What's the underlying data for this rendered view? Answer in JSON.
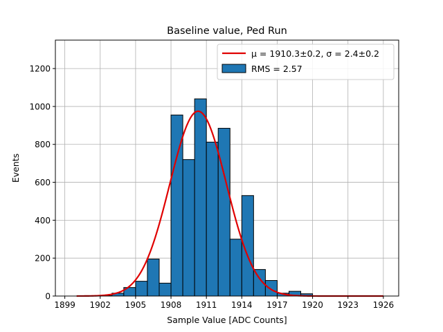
{
  "chart_data": {
    "type": "bar",
    "title": "Baseline value, Ped Run",
    "xlabel": "Sample Value [ADC Counts]",
    "ylabel": "Events",
    "xlim": [
      1898.2,
      1927.3
    ],
    "ylim": [
      0,
      1350
    ],
    "xticks": [
      1899,
      1902,
      1905,
      1908,
      1911,
      1914,
      1917,
      1920,
      1923,
      1926
    ],
    "yticks": [
      0,
      200,
      400,
      600,
      800,
      1000,
      1200
    ],
    "grid": true,
    "legend_position": "top-right",
    "histogram": {
      "name": "RMS = 2.57",
      "color": "#1f77b4",
      "edge_color": "#000000",
      "bin_edges": [
        1901,
        1902,
        1903,
        1904,
        1905,
        1906,
        1907,
        1908,
        1909,
        1910,
        1911,
        1912,
        1913,
        1914,
        1915,
        1916,
        1917,
        1918,
        1919,
        1920
      ],
      "counts": [
        1,
        2,
        15,
        45,
        78,
        195,
        68,
        955,
        720,
        1040,
        812,
        885,
        300,
        530,
        140,
        82,
        15,
        25,
        12
      ]
    },
    "fit": {
      "name": "μ = 1910.3±0.2, σ = 2.4±0.2",
      "color": "#e00000",
      "mu": 1910.3,
      "sigma": 2.4,
      "amplitude": 975,
      "x_range": [
        1900,
        1926
      ]
    }
  }
}
